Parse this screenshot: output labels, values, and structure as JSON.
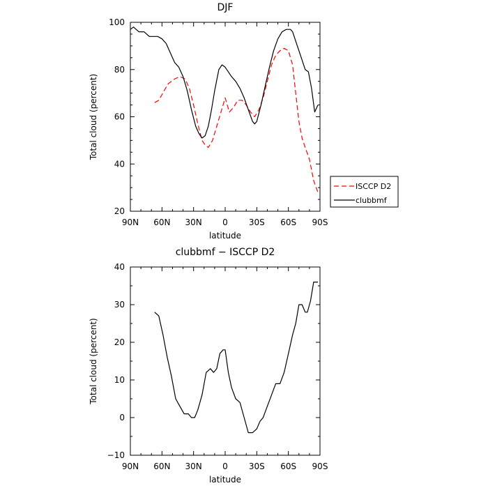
{
  "chart_data": [
    {
      "type": "line",
      "title": "DJF",
      "xlabel": "latitude",
      "ylabel": "Total cloud (percent)",
      "xlim": [
        90,
        -90
      ],
      "ylim": [
        20,
        100
      ],
      "xticks": [
        90,
        60,
        30,
        0,
        -30,
        -60,
        -90
      ],
      "xtick_labels": [
        "90N",
        "60N",
        "30N",
        "0",
        "30S",
        "60S",
        "90S"
      ],
      "yticks": [
        20,
        40,
        60,
        80,
        100
      ],
      "ytick_labels": [
        "20",
        "40",
        "60",
        "80",
        "100"
      ],
      "legend": {
        "position": "right"
      },
      "series": [
        {
          "name": "ISCCP D2",
          "color": "#ff0000",
          "style": "dashed",
          "x": [
            67,
            63,
            58,
            54,
            48,
            43,
            38,
            34,
            30,
            26,
            22,
            19,
            16,
            12,
            8,
            4,
            0,
            -4,
            -8,
            -12,
            -16,
            -20,
            -24,
            -28,
            -32,
            -36,
            -40,
            -44,
            -48,
            -52,
            -56,
            -60,
            -64,
            -67,
            -70,
            -73,
            -76,
            -80,
            -84,
            -88
          ],
          "y": [
            66,
            67,
            71,
            74,
            76,
            77,
            76,
            72,
            65,
            57,
            50,
            48,
            47,
            50,
            56,
            62,
            68,
            62,
            64,
            67,
            67,
            65,
            62,
            60,
            63,
            68,
            75,
            82,
            86,
            88,
            89,
            88,
            82,
            70,
            58,
            51,
            47,
            42,
            33,
            28
          ]
        },
        {
          "name": "clubbmf",
          "color": "#000000",
          "style": "solid",
          "x": [
            90,
            87,
            82,
            77,
            72,
            68,
            64,
            60,
            56,
            52,
            48,
            44,
            40,
            36,
            32,
            28,
            25,
            22,
            19,
            16,
            13,
            10,
            6,
            3,
            0,
            -3,
            -6,
            -10,
            -14,
            -18,
            -22,
            -26,
            -28,
            -30,
            -34,
            -38,
            -42,
            -46,
            -50,
            -54,
            -58,
            -62,
            -64,
            -67,
            -70,
            -73,
            -76,
            -79,
            -82,
            -85,
            -88
          ],
          "y": [
            97,
            98,
            96,
            96,
            94,
            94,
            94,
            93,
            91,
            87,
            83,
            81,
            77,
            71,
            63,
            56,
            53,
            51,
            52,
            56,
            63,
            71,
            80,
            82,
            81,
            79,
            77,
            75,
            72,
            68,
            63,
            58,
            57,
            58,
            65,
            73,
            81,
            88,
            93,
            96,
            97,
            97,
            96,
            92,
            88,
            84,
            80,
            79,
            72,
            62,
            65
          ]
        }
      ]
    },
    {
      "type": "line",
      "title": "clubbmf − ISCCP D2",
      "xlabel": "latitude",
      "ylabel": "Total cloud (percent)",
      "xlim": [
        90,
        -90
      ],
      "ylim": [
        -10,
        40
      ],
      "xticks": [
        90,
        60,
        30,
        0,
        -30,
        -60,
        -90
      ],
      "xtick_labels": [
        "90N",
        "60N",
        "30N",
        "0",
        "30S",
        "60S",
        "90S"
      ],
      "yticks": [
        -10,
        0,
        10,
        20,
        30,
        40
      ],
      "ytick_labels": [
        "−10",
        "0",
        "10",
        "20",
        "30",
        "40"
      ],
      "series": [
        {
          "color": "#000000",
          "style": "solid",
          "x": [
            67,
            63,
            59,
            55,
            51,
            47,
            43,
            39,
            35,
            32,
            29,
            26,
            22,
            18,
            14,
            11,
            8,
            5,
            2,
            0,
            -3,
            -6,
            -10,
            -14,
            -18,
            -22,
            -26,
            -30,
            -33,
            -36,
            -40,
            -44,
            -48,
            -52,
            -56,
            -60,
            -64,
            -67,
            -70,
            -73,
            -76,
            -78,
            -81,
            -84,
            -87,
            -88
          ],
          "y": [
            28,
            27,
            22,
            16,
            11,
            5,
            3,
            1,
            1,
            0,
            0,
            2,
            6,
            12,
            13,
            12,
            13,
            17,
            18,
            18,
            12,
            8,
            5,
            4,
            0,
            -4,
            -4,
            -3,
            -1,
            0,
            3,
            6,
            9,
            9,
            12,
            17,
            22,
            25,
            30,
            30,
            28,
            28,
            31,
            36,
            36,
            36
          ]
        }
      ]
    }
  ]
}
